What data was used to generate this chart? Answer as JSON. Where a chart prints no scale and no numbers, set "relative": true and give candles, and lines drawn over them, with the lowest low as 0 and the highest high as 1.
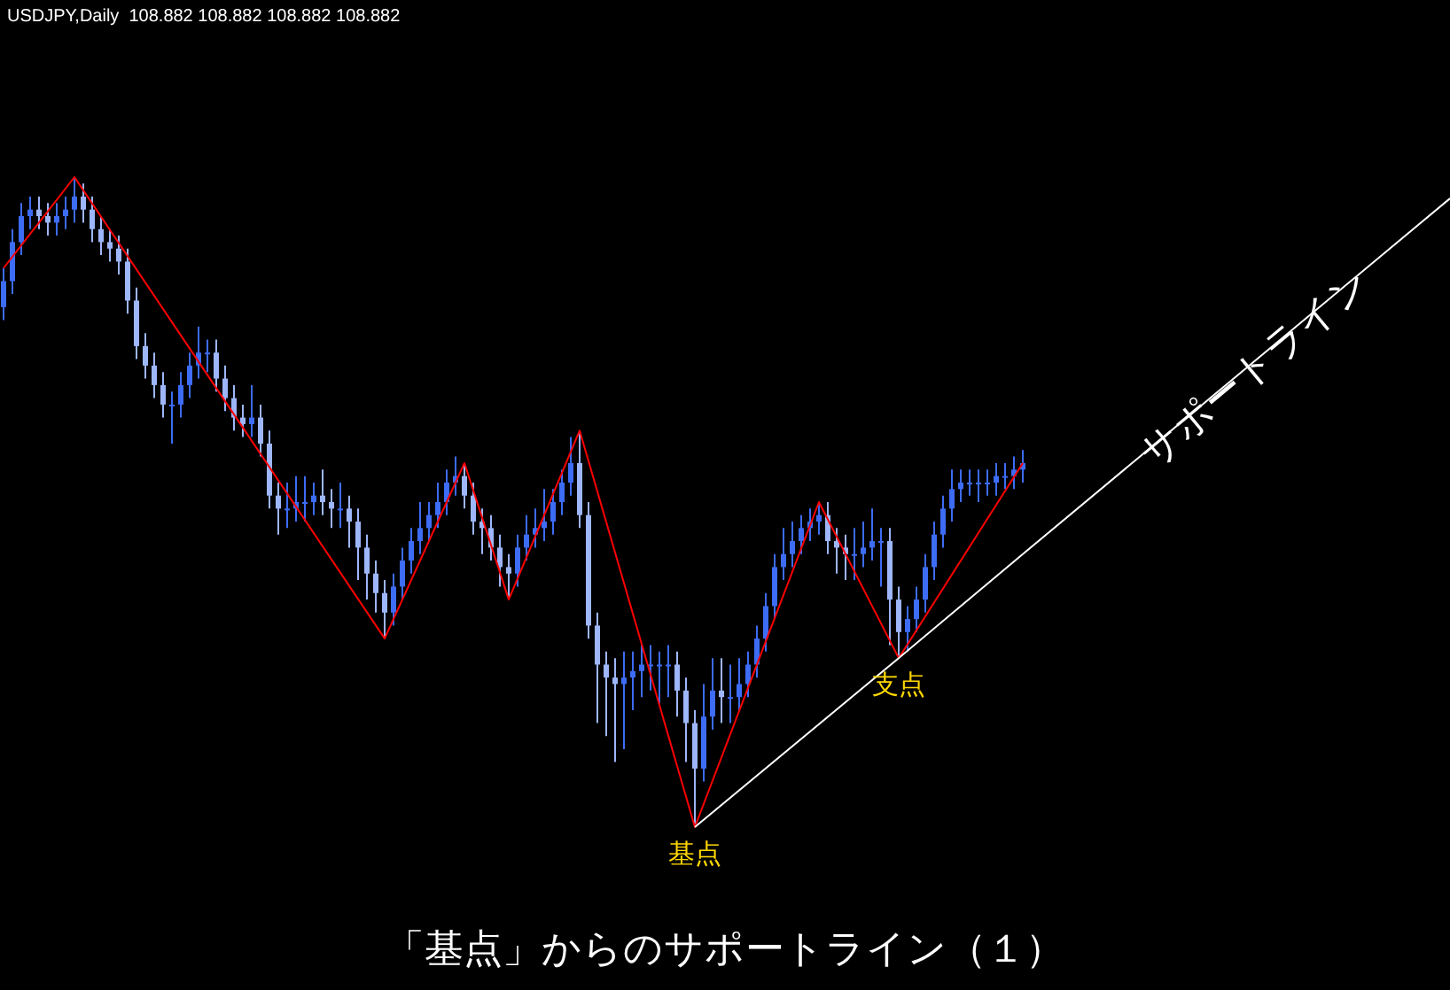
{
  "chart_data": {
    "type": "candlestick",
    "relative": true,
    "title": "「基点」からのサポートライン（１）",
    "subtitle": "USDJPY,Daily  108.882 108.882 108.882 108.882",
    "colors": [
      "#3d6cf5",
      "#3d6cf5",
      "#3d6cf5",
      "#3d6cf5",
      "#9eb6fa",
      "#9eb6fa",
      "#3d6cf5",
      "#3d6cf5",
      "#3d6cf5",
      "#9eb6fa",
      "#9eb6fa",
      "#9eb6fa",
      "#9eb6fa",
      "#9eb6fa",
      "#9eb6fa",
      "#9eb6fa",
      "#9eb6fa",
      "#9eb6fa",
      "#9eb6fa",
      "#3d6cf5",
      "#3d6cf5",
      "#3d6cf5",
      "#3d6cf5",
      "#3d6cf5",
      "#9eb6fa",
      "#9eb6fa",
      "#9eb6fa",
      "#9eb6fa",
      "#3d6cf5",
      "#9eb6fa",
      "#9eb6fa",
      "#9eb6fa",
      "#3d6cf5",
      "#3d6cf5",
      "#3d6cf5",
      "#3d6cf5",
      "#9eb6fa",
      "#9eb6fa",
      "#3d6cf5",
      "#9eb6fa",
      "#9eb6fa",
      "#9eb6fa",
      "#9eb6fa",
      "#9eb6fa",
      "#3d6cf5",
      "#3d6cf5",
      "#3d6cf5",
      "#3d6cf5",
      "#3d6cf5",
      "#3d6cf5",
      "#3d6cf5",
      "#3d6cf5",
      "#9eb6fa",
      "#9eb6fa",
      "#9eb6fa",
      "#9eb6fa",
      "#9eb6fa",
      "#9eb6fa",
      "#3d6cf5",
      "#3d6cf5",
      "#3d6cf5",
      "#3d6cf5",
      "#3d6cf5",
      "#3d6cf5",
      "#3d6cf5",
      "#9eb6fa",
      "#9eb6fa",
      "#9eb6fa",
      "#9eb6fa",
      "#9eb6fa",
      "#3d6cf5",
      "#3d6cf5",
      "#3d6cf5",
      "#3d6cf5",
      "#3d6cf5",
      "#3d6cf5",
      "#9eb6fa",
      "#9eb6fa",
      "#9eb6fa",
      "#3d6cf5",
      "#3d6cf5",
      "#9eb6fa",
      "#3d6cf5",
      "#3d6cf5",
      "#3d6cf5",
      "#3d6cf5",
      "#3d6cf5",
      "#3d6cf5",
      "#3d6cf5",
      "#3d6cf5",
      "#3d6cf5",
      "#3d6cf5",
      "#3d6cf5",
      "#9eb6fa",
      "#9eb6fa",
      "#9eb6fa",
      "#3d6cf5",
      "#3d6cf5",
      "#3d6cf5",
      "#3d6cf5",
      "#9eb6fa",
      "#9eb6fa",
      "#3d6cf5",
      "#3d6cf5",
      "#3d6cf5",
      "#3d6cf5",
      "#3d6cf5",
      "#3d6cf5",
      "#3d6cf5",
      "#3d6cf5",
      "#3d6cf5",
      "#3d6cf5",
      "#3d6cf5",
      "#3d6cf5",
      "#3d6cf5",
      "#3d6cf5"
    ],
    "categories": [
      null,
      null,
      null,
      null,
      null,
      null,
      null,
      null,
      null,
      null,
      null,
      null,
      null,
      null,
      null,
      null,
      null,
      null,
      null,
      null,
      null,
      null,
      null,
      null,
      null,
      null,
      null,
      null,
      null,
      null,
      null,
      null,
      null,
      null,
      null,
      null,
      null,
      null,
      null,
      null,
      null,
      null,
      null,
      null,
      null,
      null,
      null,
      null,
      null,
      null,
      null,
      null,
      null,
      null,
      null,
      null,
      null,
      null,
      null,
      null,
      null,
      null,
      null,
      null,
      null,
      null,
      null,
      null,
      null,
      null,
      null,
      null,
      null,
      null,
      null,
      null,
      null,
      null,
      null,
      null,
      null,
      null,
      null,
      null,
      null,
      null,
      null,
      null,
      null,
      null,
      null,
      null,
      null,
      null,
      null,
      null,
      null,
      null,
      null,
      null,
      null,
      null,
      null,
      null,
      null,
      null,
      null,
      null,
      null,
      null,
      null,
      null,
      null,
      null,
      null,
      null
    ],
    "ohlc": [
      [
        0.8,
        0.86,
        0.78,
        0.84
      ],
      [
        0.84,
        0.92,
        0.82,
        0.9
      ],
      [
        0.9,
        0.96,
        0.88,
        0.94
      ],
      [
        0.94,
        0.97,
        0.92,
        0.95
      ],
      [
        0.95,
        0.97,
        0.92,
        0.94
      ],
      [
        0.94,
        0.96,
        0.91,
        0.93
      ],
      [
        0.93,
        0.96,
        0.91,
        0.94
      ],
      [
        0.94,
        0.97,
        0.92,
        0.95
      ],
      [
        0.95,
        1.0,
        0.93,
        0.97
      ],
      [
        0.97,
        0.99,
        0.93,
        0.95
      ],
      [
        0.95,
        0.97,
        0.9,
        0.92
      ],
      [
        0.92,
        0.94,
        0.88,
        0.9
      ],
      [
        0.9,
        0.92,
        0.87,
        0.89
      ],
      [
        0.89,
        0.91,
        0.85,
        0.87
      ],
      [
        0.87,
        0.89,
        0.79,
        0.81
      ],
      [
        0.81,
        0.83,
        0.72,
        0.74
      ],
      [
        0.74,
        0.76,
        0.69,
        0.71
      ],
      [
        0.71,
        0.73,
        0.66,
        0.68
      ],
      [
        0.68,
        0.7,
        0.63,
        0.65
      ],
      [
        0.65,
        0.67,
        0.59,
        0.65
      ],
      [
        0.65,
        0.7,
        0.63,
        0.68
      ],
      [
        0.68,
        0.73,
        0.66,
        0.71
      ],
      [
        0.71,
        0.77,
        0.69,
        0.73
      ],
      [
        0.73,
        0.75,
        0.7,
        0.73
      ],
      [
        0.73,
        0.75,
        0.67,
        0.69
      ],
      [
        0.69,
        0.71,
        0.64,
        0.66
      ],
      [
        0.66,
        0.68,
        0.61,
        0.63
      ],
      [
        0.63,
        0.65,
        0.6,
        0.62
      ],
      [
        0.62,
        0.68,
        0.6,
        0.63
      ],
      [
        0.63,
        0.65,
        0.57,
        0.59
      ],
      [
        0.59,
        0.61,
        0.49,
        0.51
      ],
      [
        0.51,
        0.53,
        0.45,
        0.49
      ],
      [
        0.49,
        0.53,
        0.46,
        0.49
      ],
      [
        0.49,
        0.54,
        0.47,
        0.5
      ],
      [
        0.5,
        0.54,
        0.47,
        0.5
      ],
      [
        0.5,
        0.53,
        0.48,
        0.51
      ],
      [
        0.51,
        0.55,
        0.48,
        0.5
      ],
      [
        0.5,
        0.52,
        0.46,
        0.49
      ],
      [
        0.49,
        0.53,
        0.46,
        0.49
      ],
      [
        0.49,
        0.51,
        0.43,
        0.47
      ],
      [
        0.47,
        0.49,
        0.38,
        0.43
      ],
      [
        0.43,
        0.45,
        0.35,
        0.39
      ],
      [
        0.39,
        0.41,
        0.33,
        0.36
      ],
      [
        0.36,
        0.38,
        0.29,
        0.33
      ],
      [
        0.33,
        0.39,
        0.31,
        0.37
      ],
      [
        0.37,
        0.43,
        0.35,
        0.41
      ],
      [
        0.41,
        0.46,
        0.39,
        0.44
      ],
      [
        0.44,
        0.5,
        0.42,
        0.46
      ],
      [
        0.46,
        0.5,
        0.44,
        0.48
      ],
      [
        0.48,
        0.53,
        0.46,
        0.5
      ],
      [
        0.5,
        0.55,
        0.48,
        0.53
      ],
      [
        0.53,
        0.57,
        0.51,
        0.54
      ],
      [
        0.54,
        0.56,
        0.49,
        0.51
      ],
      [
        0.51,
        0.53,
        0.45,
        0.47
      ],
      [
        0.47,
        0.49,
        0.42,
        0.46
      ],
      [
        0.46,
        0.48,
        0.41,
        0.43
      ],
      [
        0.43,
        0.45,
        0.37,
        0.4
      ],
      [
        0.4,
        0.42,
        0.35,
        0.39
      ],
      [
        0.39,
        0.45,
        0.37,
        0.43
      ],
      [
        0.43,
        0.48,
        0.41,
        0.45
      ],
      [
        0.45,
        0.49,
        0.43,
        0.46
      ],
      [
        0.46,
        0.52,
        0.44,
        0.47
      ],
      [
        0.47,
        0.52,
        0.45,
        0.5
      ],
      [
        0.5,
        0.55,
        0.48,
        0.53
      ],
      [
        0.53,
        0.6,
        0.51,
        0.56
      ],
      [
        0.56,
        0.61,
        0.46,
        0.48
      ],
      [
        0.48,
        0.5,
        0.29,
        0.31
      ],
      [
        0.31,
        0.33,
        0.16,
        0.25
      ],
      [
        0.25,
        0.27,
        0.14,
        0.23
      ],
      [
        0.23,
        0.26,
        0.1,
        0.22
      ],
      [
        0.22,
        0.27,
        0.12,
        0.23
      ],
      [
        0.23,
        0.27,
        0.18,
        0.24
      ],
      [
        0.24,
        0.28,
        0.2,
        0.25
      ],
      [
        0.25,
        0.28,
        0.21,
        0.25
      ],
      [
        0.25,
        0.27,
        0.19,
        0.25
      ],
      [
        0.25,
        0.28,
        0.2,
        0.25
      ],
      [
        0.25,
        0.27,
        0.17,
        0.21
      ],
      [
        0.21,
        0.23,
        0.1,
        0.16
      ],
      [
        0.16,
        0.18,
        0,
        0.09
      ],
      [
        0.09,
        0.22,
        0.07,
        0.17
      ],
      [
        0.17,
        0.26,
        0.15,
        0.21
      ],
      [
        0.21,
        0.26,
        0.16,
        0.2
      ],
      [
        0.2,
        0.25,
        0.16,
        0.2
      ],
      [
        0.2,
        0.26,
        0.18,
        0.22
      ],
      [
        0.22,
        0.27,
        0.2,
        0.25
      ],
      [
        0.25,
        0.31,
        0.23,
        0.29
      ],
      [
        0.29,
        0.36,
        0.27,
        0.34
      ],
      [
        0.34,
        0.42,
        0.32,
        0.4
      ],
      [
        0.4,
        0.46,
        0.38,
        0.42
      ],
      [
        0.42,
        0.47,
        0.4,
        0.44
      ],
      [
        0.44,
        0.48,
        0.42,
        0.46
      ],
      [
        0.46,
        0.49,
        0.44,
        0.47
      ],
      [
        0.47,
        0.5,
        0.45,
        0.48
      ],
      [
        0.48,
        0.5,
        0.42,
        0.44
      ],
      [
        0.44,
        0.46,
        0.39,
        0.43
      ],
      [
        0.43,
        0.45,
        0.38,
        0.42
      ],
      [
        0.42,
        0.46,
        0.38,
        0.42
      ],
      [
        0.42,
        0.47,
        0.4,
        0.43
      ],
      [
        0.43,
        0.49,
        0.41,
        0.44
      ],
      [
        0.44,
        0.46,
        0.37,
        0.44
      ],
      [
        0.44,
        0.46,
        0.28,
        0.35
      ],
      [
        0.35,
        0.37,
        0.26,
        0.3
      ],
      [
        0.3,
        0.34,
        0.27,
        0.32
      ],
      [
        0.32,
        0.37,
        0.3,
        0.35
      ],
      [
        0.35,
        0.42,
        0.33,
        0.4
      ],
      [
        0.4,
        0.47,
        0.38,
        0.45
      ],
      [
        0.45,
        0.51,
        0.43,
        0.49
      ],
      [
        0.49,
        0.55,
        0.47,
        0.52
      ],
      [
        0.52,
        0.55,
        0.5,
        0.53
      ],
      [
        0.53,
        0.55,
        0.51,
        0.53
      ],
      [
        0.53,
        0.55,
        0.5,
        0.53
      ],
      [
        0.53,
        0.55,
        0.51,
        0.53
      ],
      [
        0.53,
        0.56,
        0.51,
        0.54
      ],
      [
        0.54,
        0.56,
        0.52,
        0.54
      ],
      [
        0.54,
        0.57,
        0.52,
        0.55
      ],
      [
        0.55,
        0.58,
        0.53,
        0.56
      ]
    ],
    "series": [
      {
        "type": "line",
        "color": "#ff0000",
        "values": [
          0.86,
          null,
          null,
          null,
          null,
          null,
          null,
          null,
          1.0,
          null,
          null,
          null,
          null,
          null,
          null,
          null,
          null,
          null,
          null,
          null,
          null,
          null,
          null,
          null,
          null,
          null,
          null,
          null,
          null,
          null,
          null,
          null,
          null,
          null,
          null,
          null,
          null,
          null,
          null,
          null,
          null,
          null,
          null,
          0.29,
          null,
          null,
          null,
          null,
          null,
          null,
          null,
          null,
          0.56,
          null,
          null,
          null,
          null,
          0.35,
          null,
          null,
          null,
          null,
          null,
          null,
          null,
          0.61,
          null,
          null,
          null,
          null,
          null,
          null,
          null,
          null,
          null,
          null,
          null,
          null,
          0,
          null,
          null,
          null,
          null,
          null,
          null,
          null,
          null,
          null,
          null,
          null,
          null,
          null,
          0.5,
          null,
          null,
          null,
          null,
          null,
          null,
          null,
          null,
          0.26,
          null,
          null,
          null,
          null,
          null,
          null,
          null,
          null,
          null,
          null,
          null,
          null,
          null,
          0.56
        ]
      },
      {
        "type": "line",
        "name": "サポートライン",
        "color": "#ffffff",
        "values": [
          null,
          null,
          null,
          null,
          null,
          null,
          null,
          null,
          null,
          null,
          null,
          null,
          null,
          null,
          null,
          null,
          null,
          null,
          null,
          null,
          null,
          null,
          null,
          null,
          null,
          null,
          null,
          null,
          null,
          null,
          null,
          null,
          null,
          null,
          null,
          null,
          null,
          null,
          null,
          null,
          null,
          null,
          null,
          null,
          null,
          null,
          null,
          null,
          null,
          null,
          null,
          null,
          null,
          null,
          null,
          null,
          null,
          null,
          null,
          null,
          null,
          null,
          null,
          null,
          null,
          null,
          null,
          null,
          null,
          null,
          null,
          null,
          null,
          null,
          null,
          null,
          null,
          null,
          0,
          null,
          null,
          null,
          null,
          null,
          null,
          null,
          null,
          null,
          null,
          null,
          null,
          null,
          null,
          null,
          null,
          null,
          null,
          null,
          null,
          null,
          null,
          0.26,
          null,
          null,
          null,
          null,
          null,
          null,
          null,
          null,
          null,
          null,
          null,
          null,
          null,
          0.42
        ]
      }
    ],
    "annotations": [
      "基点",
      "支点"
    ]
  }
}
